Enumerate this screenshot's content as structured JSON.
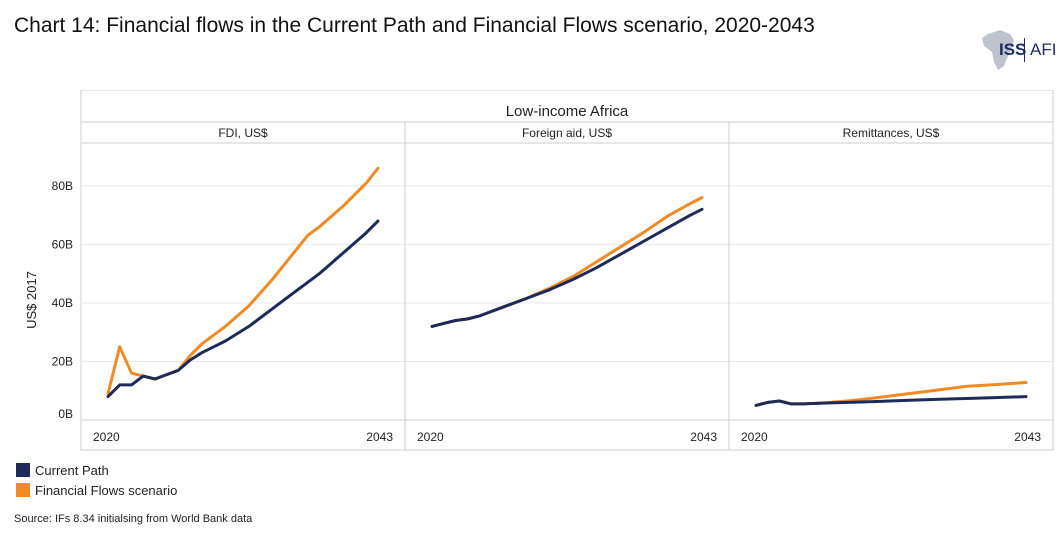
{
  "title": "Chart 14: Financial flows in the Current Path and Financial Flows scenario, 2020-2043",
  "logo": {
    "left": "ISS",
    "right": "AFI"
  },
  "source": "Source: IFs 8.34 initialsing from World Bank data",
  "colors": {
    "current_path": "#1e2a57",
    "financial_flows": "#f08a24",
    "grid": "#e8e8e8",
    "border": "#cccccc"
  },
  "chart_data": {
    "type": "line",
    "group_title": "Low-income Africa",
    "ylabel": "US$ 2017",
    "ylim": [
      0,
      95
    ],
    "yticks": [
      0,
      20,
      40,
      60,
      80
    ],
    "ytick_labels": [
      "0B",
      "20B",
      "40B",
      "60B",
      "80B"
    ],
    "xlim": [
      2020,
      2043
    ],
    "xtick_labels": [
      "2020",
      "2043"
    ],
    "legend": [
      "Current Path",
      "Financial Flows scenario"
    ],
    "legend_position": "bottom-left",
    "panels": [
      {
        "title": "FDI, US$",
        "series": [
          {
            "name": "Current Path",
            "x": [
              2020,
              2021,
              2022,
              2023,
              2024,
              2025,
              2026,
              2027,
              2028,
              2029,
              2030,
              2032,
              2034,
              2036,
              2038,
              2040,
              2042,
              2043
            ],
            "values": [
              8,
              12,
              12,
              15,
              14,
              15.5,
              17,
              20.5,
              23,
              25,
              27,
              32,
              38,
              44,
              50,
              57,
              64,
              68
            ]
          },
          {
            "name": "Financial Flows scenario",
            "x": [
              2020,
              2021,
              2022,
              2023,
              2024,
              2025,
              2026,
              2027,
              2028,
              2029,
              2030,
              2032,
              2034,
              2036,
              2037,
              2038,
              2040,
              2042,
              2043
            ],
            "values": [
              9,
              25,
              16,
              15,
              14,
              15.5,
              17,
              22,
              26,
              29,
              32,
              39,
              48,
              58,
              63,
              66,
              73,
              81,
              86
            ]
          }
        ]
      },
      {
        "title": "Foreign aid, US$",
        "series": [
          {
            "name": "Current Path",
            "x": [
              2020,
              2021,
              2022,
              2023,
              2024,
              2026,
              2028,
              2030,
              2032,
              2034,
              2036,
              2038,
              2040,
              2042,
              2043
            ],
            "values": [
              32,
              33,
              34,
              34.5,
              35.5,
              38.5,
              41.5,
              44.5,
              48,
              52,
              56.5,
              61,
              65.5,
              70,
              72
            ]
          },
          {
            "name": "Financial Flows scenario",
            "x": [
              2020,
              2021,
              2022,
              2023,
              2024,
              2026,
              2028,
              2030,
              2032,
              2034,
              2036,
              2038,
              2040,
              2042,
              2043
            ],
            "values": [
              32,
              33,
              34,
              34.5,
              35.5,
              38.5,
              41.5,
              45,
              49,
              54,
              59,
              64,
              69.5,
              74,
              76
            ]
          }
        ]
      },
      {
        "title": "Remittances, US$",
        "series": [
          {
            "name": "Current Path",
            "x": [
              2020,
              2021,
              2022,
              2023,
              2024,
              2026,
              2030,
              2035,
              2040,
              2043
            ],
            "values": [
              5,
              6,
              6.5,
              5.5,
              5.5,
              5.8,
              6.3,
              7,
              7.6,
              8
            ]
          },
          {
            "name": "Financial Flows scenario",
            "x": [
              2020,
              2021,
              2022,
              2023,
              2024,
              2026,
              2028,
              2030,
              2032,
              2035,
              2038,
              2040,
              2043
            ],
            "values": [
              5,
              6,
              6.5,
              5.5,
              5.5,
              5.9,
              6.6,
              7.5,
              8.5,
              10,
              11.5,
              12,
              12.8
            ]
          }
        ]
      }
    ]
  }
}
